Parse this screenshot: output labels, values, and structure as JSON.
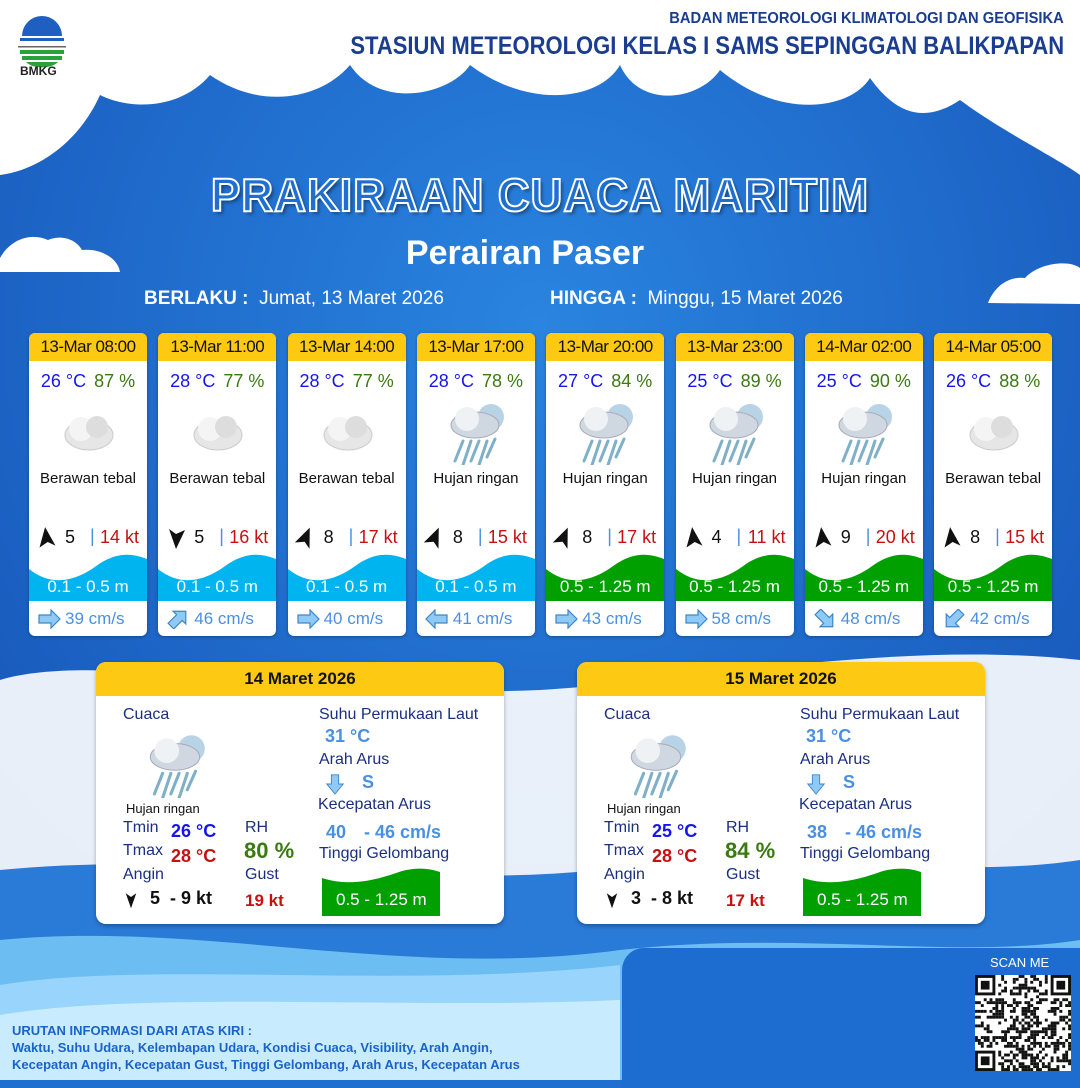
{
  "header": {
    "agency": "BADAN METEOROLOGI KLIMATOLOGI DAN GEOFISIKA",
    "station": "STASIUN METEOROLOGI KELAS I SAMS SEPINGGAN BALIKPAPAN",
    "logo_text": "BMKG"
  },
  "title": "PRAKIRAAN CUACA MARITIM",
  "subtitle": "Perairan Paser",
  "validity": {
    "from_label": "BERLAKU :",
    "from": "Jumat, 13 Maret 2026",
    "to_label": "HINGGA :",
    "to": "Minggu, 15 Maret 2026"
  },
  "colors": {
    "header_yellow": "#fdc912",
    "temp": "#1515f0",
    "rh": "#3a7a10",
    "gust": "#c81010",
    "wave_low": "#00b4f0",
    "wave_mid": "#00a000",
    "current": "#4a90e2"
  },
  "forecasts": [
    {
      "time": "13-Mar 08:00",
      "temp": "26 °C",
      "rh": "87 %",
      "icon": "cloud-icon",
      "condition": "Berawan tebal",
      "wind_dir_deg": 350,
      "wind": "5",
      "sep": "|",
      "gust": "14 kt",
      "wave": "0.1 - 0.5 m",
      "wave_class": "low",
      "current_dir_deg": 90,
      "current": "39 cm/s"
    },
    {
      "time": "13-Mar 11:00",
      "temp": "28 °C",
      "rh": "77 %",
      "icon": "cloud-icon",
      "condition": "Berawan tebal",
      "wind_dir_deg": 180,
      "wind": "5",
      "sep": "|",
      "gust": "16 kt",
      "wave": "0.1 - 0.5 m",
      "wave_class": "low",
      "current_dir_deg": 45,
      "current": "46 cm/s"
    },
    {
      "time": "13-Mar 14:00",
      "temp": "28 °C",
      "rh": "77 %",
      "icon": "cloud-icon",
      "condition": "Berawan tebal",
      "wind_dir_deg": 20,
      "wind": "8",
      "sep": "|",
      "gust": "17 kt",
      "wave": "0.1 - 0.5 m",
      "wave_class": "low",
      "current_dir_deg": 90,
      "current": "40 cm/s"
    },
    {
      "time": "13-Mar 17:00",
      "temp": "28 °C",
      "rh": "78 %",
      "icon": "rain-cloud-icon",
      "condition": "Hujan ringan",
      "wind_dir_deg": 20,
      "wind": "8",
      "sep": "|",
      "gust": "15 kt",
      "wave": "0.1 - 0.5 m",
      "wave_class": "low",
      "current_dir_deg": 270,
      "current": "41 cm/s"
    },
    {
      "time": "13-Mar 20:00",
      "temp": "27 °C",
      "rh": "84 %",
      "icon": "rain-cloud-icon",
      "condition": "Hujan ringan",
      "wind_dir_deg": 20,
      "wind": "8",
      "sep": "|",
      "gust": "17 kt",
      "wave": "0.5 - 1.25 m",
      "wave_class": "mid",
      "current_dir_deg": 90,
      "current": "43 cm/s"
    },
    {
      "time": "13-Mar 23:00",
      "temp": "25 °C",
      "rh": "89 %",
      "icon": "rain-cloud-icon",
      "condition": "Hujan ringan",
      "wind_dir_deg": 350,
      "wind": "4",
      "sep": "|",
      "gust": "11 kt",
      "wave": "0.5 - 1.25 m",
      "wave_class": "mid",
      "current_dir_deg": 90,
      "current": "58 cm/s"
    },
    {
      "time": "14-Mar 02:00",
      "temp": "25 °C",
      "rh": "90 %",
      "icon": "rain-cloud-icon",
      "condition": "Hujan ringan",
      "wind_dir_deg": 350,
      "wind": "9",
      "sep": "|",
      "gust": "20 kt",
      "wave": "0.5 - 1.25 m",
      "wave_class": "mid",
      "current_dir_deg": 135,
      "current": "48 cm/s"
    },
    {
      "time": "14-Mar 05:00",
      "temp": "26 °C",
      "rh": "88 %",
      "icon": "cloud-icon",
      "condition": "Berawan tebal",
      "wind_dir_deg": 350,
      "wind": "8",
      "sep": "|",
      "gust": "15 kt",
      "wave": "0.5 - 1.25 m",
      "wave_class": "mid",
      "current_dir_deg": 225,
      "current": "42 cm/s"
    }
  ],
  "daily": [
    {
      "date": "14 Maret 2026",
      "weather_label": "Cuaca",
      "condition": "Hujan ringan",
      "icon": "rain-cloud-icon",
      "tmin_label": "Tmin",
      "tmin": "26 °C",
      "tmax_label": "Tmax",
      "tmax": "28 °C",
      "rh_label": "RH",
      "rh": "80 %",
      "wind_label": "Angin",
      "wind_dir_deg": 180,
      "wind": "5  - 9 kt",
      "gust_label": "Gust",
      "gust": "19 kt",
      "sst_label": "Suhu Permukaan Laut",
      "sst": "31 °C",
      "current_dir_label": "Arah Arus",
      "current_dir": "S",
      "current_speed_label": "Kecepatan Arus",
      "current_min": "40",
      "current_max": "- 46 cm/s",
      "wave_label": "Tinggi Gelombang",
      "wave": "0.5 - 1.25 m"
    },
    {
      "date": "15 Maret 2026",
      "weather_label": "Cuaca",
      "condition": "Hujan ringan",
      "icon": "rain-cloud-icon",
      "tmin_label": "Tmin",
      "tmin": "25 °C",
      "tmax_label": "Tmax",
      "tmax": "28 °C",
      "rh_label": "RH",
      "rh": "84 %",
      "wind_label": "Angin",
      "wind_dir_deg": 180,
      "wind": "3  - 8 kt",
      "gust_label": "Gust",
      "gust": "17 kt",
      "sst_label": "Suhu Permukaan Laut",
      "sst": "31 °C",
      "current_dir_label": "Arah Arus",
      "current_dir": "S",
      "current_speed_label": "Kecepatan Arus",
      "current_min": "38",
      "current_max": "- 46 cm/s",
      "wave_label": "Tinggi Gelombang",
      "wave": "0.5 - 1.25 m"
    }
  ],
  "legend": {
    "title": "URUTAN INFORMASI DARI ATAS KIRI :",
    "line1": "Waktu, Suhu Udara, Kelembapan Udara, Kondisi Cuaca, Visibility, Arah Angin,",
    "line2": "Kecepatan Angin, Kecepatan Gust, Tinggi Gelombang, Arah Arus, Kecepatan Arus"
  },
  "qr": {
    "label": "SCAN ME"
  }
}
